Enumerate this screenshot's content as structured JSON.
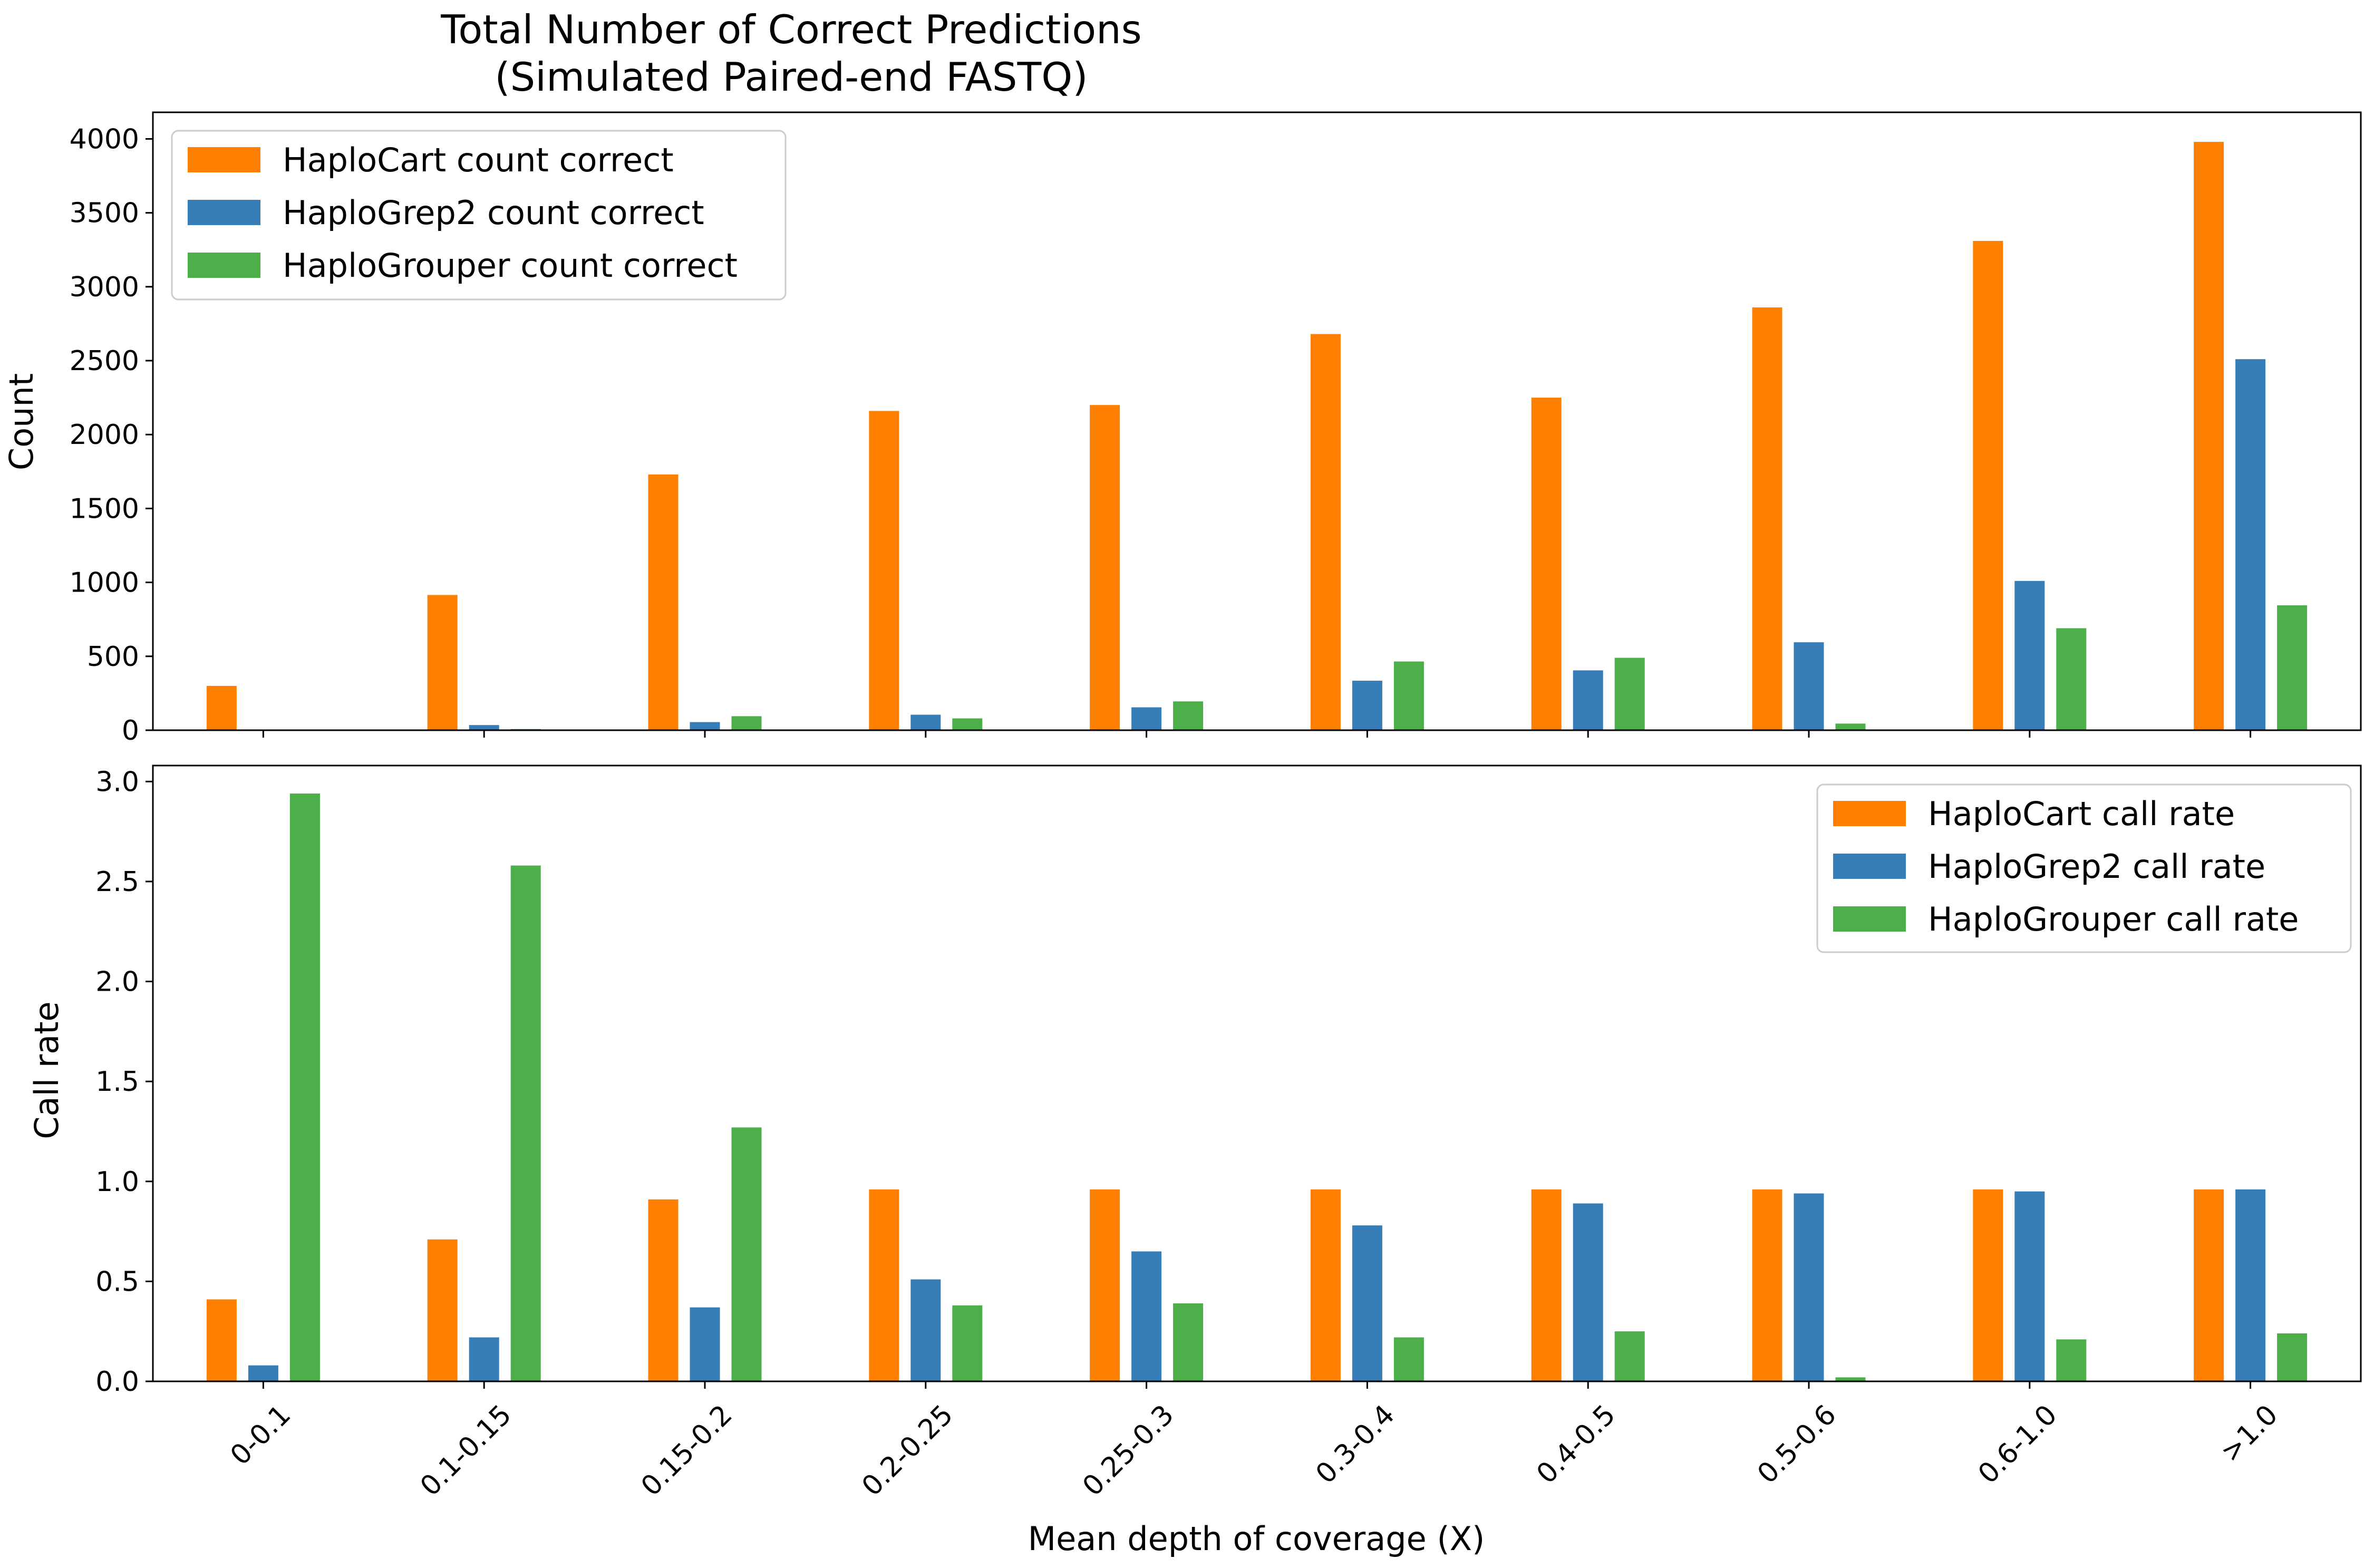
{
  "chart_data": {
    "type": "bar",
    "title": "Total Number of Correct Predictions",
    "subtitle": "(Simulated Paired-end FASTQ)",
    "xlabel": "Mean depth of coverage (X)",
    "categories": [
      "0-0.1",
      "0.1-0.15",
      "0.15-0.2",
      "0.2-0.25",
      "0.25-0.3",
      "0.3-0.4",
      "0.4-0.5",
      "0.5-0.6",
      "0.6-1.0",
      ">1.0"
    ],
    "panels": [
      {
        "ylabel": "Count",
        "ylim": [
          0,
          4180
        ],
        "yticks": [
          0,
          500,
          1000,
          1500,
          2000,
          2500,
          3000,
          3500,
          4000
        ],
        "legend_position": "upper-left",
        "series": [
          {
            "name": "HaploCart count correct",
            "color": "#ff7f00",
            "values": [
              300,
              915,
              1730,
              2160,
              2200,
              2680,
              2250,
              2860,
              3310,
              3980
            ]
          },
          {
            "name": "HaploGrep2 count correct",
            "color": "#377eb8",
            "values": [
              5,
              35,
              55,
              105,
              155,
              335,
              405,
              595,
              1010,
              2510
            ]
          },
          {
            "name": "HaploGrouper count correct",
            "color": "#4daf4a",
            "values": [
              3,
              8,
              95,
              80,
              195,
              465,
              490,
              45,
              690,
              845
            ]
          }
        ]
      },
      {
        "ylabel": "Call rate",
        "ylim": [
          0,
          3.08
        ],
        "yticks": [
          "0.0",
          "0.5",
          "1.0",
          "1.5",
          "2.0",
          "2.5",
          "3.0"
        ],
        "legend_position": "upper-right",
        "series": [
          {
            "name": "HaploCart call rate",
            "color": "#ff7f00",
            "values": [
              0.41,
              0.71,
              0.91,
              0.96,
              0.96,
              0.96,
              0.96,
              0.96,
              0.96,
              0.96
            ]
          },
          {
            "name": "HaploGrep2 call rate",
            "color": "#377eb8",
            "values": [
              0.08,
              0.22,
              0.37,
              0.51,
              0.65,
              0.78,
              0.89,
              0.94,
              0.95,
              0.96
            ]
          },
          {
            "name": "HaploGrouper call rate",
            "color": "#4daf4a",
            "values": [
              2.94,
              2.58,
              1.27,
              0.38,
              0.39,
              0.22,
              0.25,
              0.02,
              0.21,
              0.24
            ]
          }
        ]
      }
    ]
  }
}
